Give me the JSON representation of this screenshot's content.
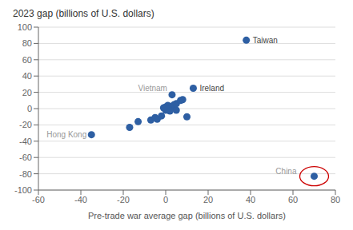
{
  "chart_data": {
    "type": "scatter",
    "title": "2023 gap (billions of U.S. dollars)",
    "xlabel": "Pre-trade war average gap (billions of U.S. dollars)",
    "xlim": [
      -60,
      80
    ],
    "ylim": [
      -100,
      100
    ],
    "xticks": [
      -60,
      -40,
      -20,
      0,
      20,
      40,
      60,
      80
    ],
    "yticks": [
      -100,
      -80,
      -60,
      -40,
      -20,
      0,
      20,
      40,
      60,
      80,
      100
    ],
    "grid": "y",
    "color": "#2E5FA3",
    "x": [
      70,
      38,
      13,
      3,
      -35,
      -17,
      -13,
      -7,
      -5,
      -4,
      -2,
      0,
      0,
      1,
      2,
      2,
      3,
      4,
      5,
      5,
      7,
      8,
      10,
      -1,
      1,
      2
    ],
    "values": [
      -83,
      84,
      25,
      17,
      -32,
      -23,
      -16,
      -14,
      -11,
      -13,
      -9,
      -2,
      2,
      4,
      0,
      1,
      3,
      5,
      -2,
      6,
      10,
      11,
      -10,
      1,
      -1,
      -3
    ],
    "annotations": [
      {
        "text": "China",
        "x": 70,
        "y": -83,
        "color": "#999999"
      },
      {
        "text": "Taiwan",
        "x": 38,
        "y": 84,
        "color": "#444444"
      },
      {
        "text": "Ireland",
        "x": 13,
        "y": 25,
        "color": "#444444"
      },
      {
        "text": "Vietnam",
        "x": 3,
        "y": 17,
        "color": "#999999"
      },
      {
        "text": "Hong Kong",
        "x": -35,
        "y": -32,
        "color": "#999999"
      }
    ],
    "highlight": {
      "x": 70,
      "y": -83,
      "color": "#cc0000"
    }
  }
}
